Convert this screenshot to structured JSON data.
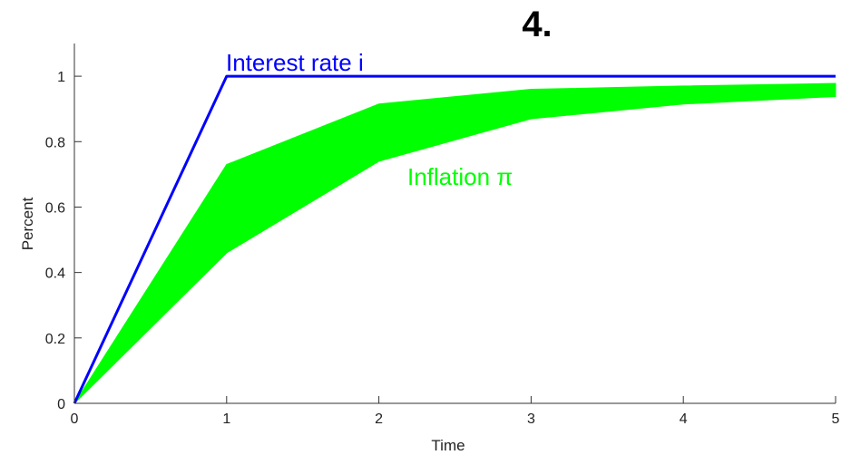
{
  "chart_data": {
    "type": "area",
    "title": "4.",
    "xlabel": "Time",
    "ylabel": "Percent",
    "xlim": [
      0,
      5
    ],
    "ylim": [
      0,
      1.1
    ],
    "x_ticks": [
      "0",
      "1",
      "2",
      "3",
      "4",
      "5"
    ],
    "y_ticks": [
      "0",
      "0.2",
      "0.4",
      "0.6",
      "0.8",
      "1"
    ],
    "grid": false,
    "series": [
      {
        "name": "Interest rate i",
        "kind": "line",
        "color": "#0000ff",
        "x": [
          0,
          1,
          2,
          3,
          4,
          5
        ],
        "values": [
          0,
          1,
          1,
          1,
          1,
          1
        ]
      },
      {
        "name": "Inflation π",
        "kind": "band",
        "color": "#00ff00",
        "x": [
          0,
          1,
          2,
          3,
          4,
          5
        ],
        "upper": [
          0,
          0.73,
          0.915,
          0.96,
          0.97,
          0.978
        ],
        "lower": [
          0,
          0.46,
          0.74,
          0.87,
          0.915,
          0.938
        ]
      }
    ]
  }
}
